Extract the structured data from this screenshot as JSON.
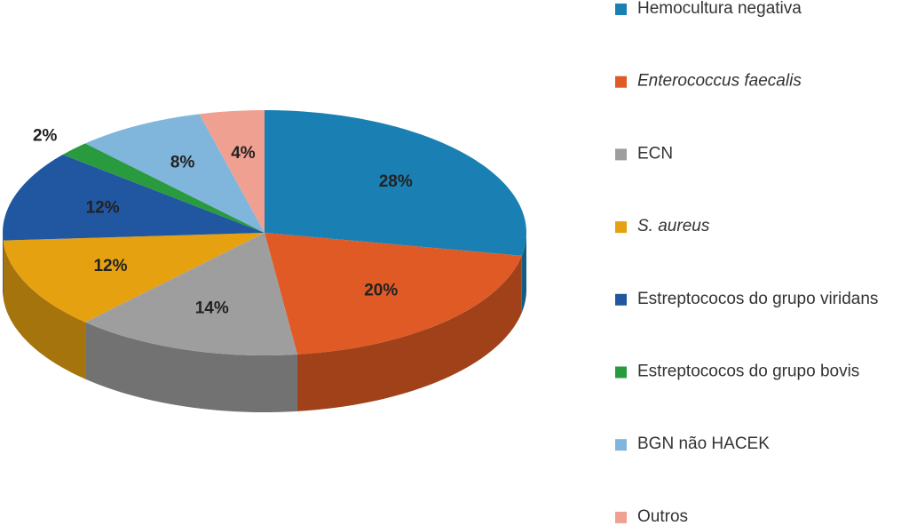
{
  "chart_data": {
    "type": "pie",
    "categories": [
      "Hemocultura negativa",
      "Enterococcus faecalis",
      "ECN",
      "S. aureus",
      "Estreptococos do grupo viridans",
      "Estreptococos do grupo bovis",
      "BGN não HACEK",
      "Outros"
    ],
    "values": [
      28,
      20,
      14,
      12,
      12,
      2,
      8,
      4
    ],
    "value_labels": [
      "28%",
      "20%",
      "14%",
      "12%",
      "12%",
      "2%",
      "8%",
      "4%"
    ],
    "colors": [
      "#1a80b4",
      "#df5a24",
      "#9e9e9e",
      "#e6a110",
      "#2057a0",
      "#2a9a3e",
      "#80b5dc",
      "#f0a090"
    ],
    "italic": [
      false,
      true,
      false,
      true,
      false,
      false,
      false,
      false
    ],
    "legend": "right"
  }
}
